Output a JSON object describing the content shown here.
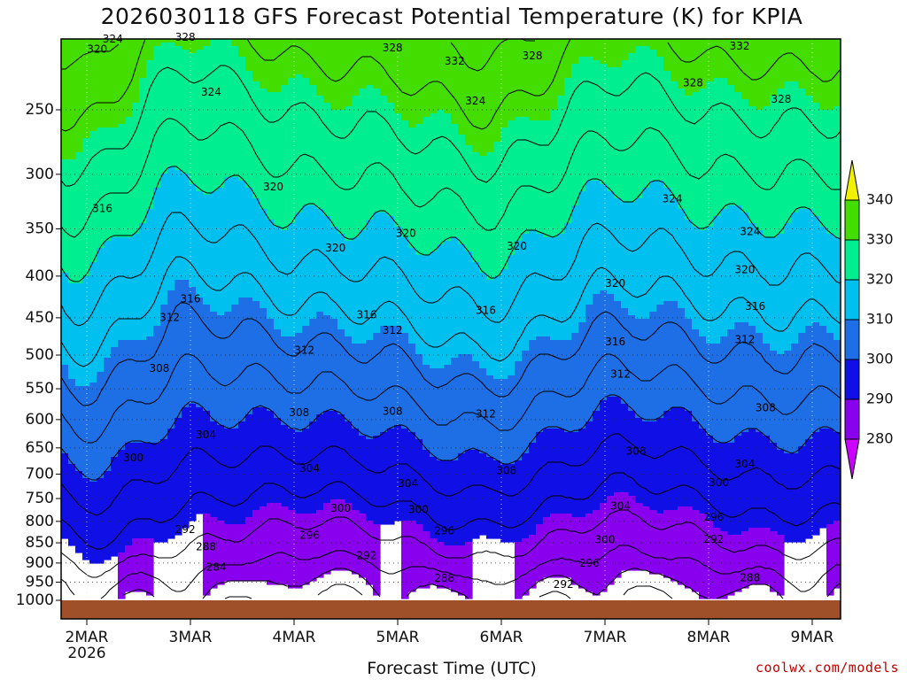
{
  "title": "2026030118 GFS Forecast Potential Temperature (K) for KPIA",
  "x_axis_title": "Forecast Time (UTC)",
  "credit": "coolwx.com/models",
  "chart_data": {
    "type": "heatmap",
    "title": "2026030118 GFS Forecast Potential Temperature (K) for KPIA",
    "xlabel": "Forecast Time (UTC)",
    "ylabel": "",
    "y_scale": "log, inverted (pressure, hPa)",
    "ylim": [
      1000,
      200
    ],
    "x_ticks": [
      {
        "label": "2MAR",
        "day": 0
      },
      {
        "label": "3MAR",
        "day": 1
      },
      {
        "label": "4MAR",
        "day": 2
      },
      {
        "label": "5MAR",
        "day": 3
      },
      {
        "label": "6MAR",
        "day": 4
      },
      {
        "label": "7MAR",
        "day": 5
      },
      {
        "label": "8MAR",
        "day": 6
      },
      {
        "label": "9MAR",
        "day": 7
      }
    ],
    "x_year_label": "2026",
    "y_ticks": [
      250,
      300,
      350,
      400,
      450,
      500,
      550,
      600,
      650,
      700,
      750,
      800,
      850,
      900,
      950,
      1000
    ],
    "colorbar": {
      "levels": [
        280,
        290,
        300,
        310,
        320,
        330,
        340
      ],
      "colors": [
        "#cc00ff",
        "#8800ee",
        "#1010e6",
        "#1e6fe6",
        "#00c0f0",
        "#00ee90",
        "#44dd00",
        "#f0f000"
      ]
    },
    "ground_color": "#a05028",
    "contour_labels": [
      {
        "value": "324",
        "day": 0.25,
        "p": 205
      },
      {
        "value": "320",
        "day": 0.1,
        "p": 211
      },
      {
        "value": "328",
        "day": 0.95,
        "p": 204
      },
      {
        "value": "324",
        "day": 1.2,
        "p": 238
      },
      {
        "value": "316",
        "day": 0.15,
        "p": 331
      },
      {
        "value": "320",
        "day": 1.8,
        "p": 311
      },
      {
        "value": "316",
        "day": 1.0,
        "p": 427
      },
      {
        "value": "312",
        "day": 0.8,
        "p": 450
      },
      {
        "value": "308",
        "day": 0.7,
        "p": 520
      },
      {
        "value": "304",
        "day": 1.15,
        "p": 627
      },
      {
        "value": "300",
        "day": 0.45,
        "p": 669
      },
      {
        "value": "292",
        "day": 0.95,
        "p": 820
      },
      {
        "value": "288",
        "day": 1.15,
        "p": 861
      },
      {
        "value": "284",
        "day": 1.25,
        "p": 912
      },
      {
        "value": "328",
        "day": 2.95,
        "p": 210
      },
      {
        "value": "332",
        "day": 3.55,
        "p": 218
      },
      {
        "value": "328",
        "day": 4.3,
        "p": 215
      },
      {
        "value": "324",
        "day": 3.75,
        "p": 244
      },
      {
        "value": "320",
        "day": 2.4,
        "p": 370
      },
      {
        "value": "320",
        "day": 3.08,
        "p": 355
      },
      {
        "value": "316",
        "day": 2.7,
        "p": 447
      },
      {
        "value": "312",
        "day": 2.95,
        "p": 467
      },
      {
        "value": "312",
        "day": 2.1,
        "p": 494
      },
      {
        "value": "308",
        "day": 2.05,
        "p": 589
      },
      {
        "value": "308",
        "day": 2.95,
        "p": 587
      },
      {
        "value": "304",
        "day": 2.15,
        "p": 690
      },
      {
        "value": "304",
        "day": 3.1,
        "p": 720
      },
      {
        "value": "300",
        "day": 2.45,
        "p": 772
      },
      {
        "value": "300",
        "day": 3.2,
        "p": 775
      },
      {
        "value": "296",
        "day": 2.15,
        "p": 833
      },
      {
        "value": "292",
        "day": 2.7,
        "p": 882
      },
      {
        "value": "296",
        "day": 3.45,
        "p": 823
      },
      {
        "value": "288",
        "day": 3.45,
        "p": 941
      },
      {
        "value": "320",
        "day": 4.15,
        "p": 368
      },
      {
        "value": "316",
        "day": 3.85,
        "p": 441
      },
      {
        "value": "312",
        "day": 3.85,
        "p": 591
      },
      {
        "value": "308",
        "day": 4.05,
        "p": 694
      },
      {
        "value": "292",
        "day": 4.6,
        "p": 957
      },
      {
        "value": "296",
        "day": 4.85,
        "p": 901
      },
      {
        "value": "300",
        "day": 5.0,
        "p": 844
      },
      {
        "value": "304",
        "day": 5.15,
        "p": 767
      },
      {
        "value": "308",
        "day": 5.3,
        "p": 657
      },
      {
        "value": "312",
        "day": 5.15,
        "p": 528
      },
      {
        "value": "316",
        "day": 5.1,
        "p": 482
      },
      {
        "value": "320",
        "day": 5.1,
        "p": 409
      },
      {
        "value": "324",
        "day": 5.65,
        "p": 322
      },
      {
        "value": "328",
        "day": 5.85,
        "p": 232
      },
      {
        "value": "332",
        "day": 6.3,
        "p": 209
      },
      {
        "value": "328",
        "day": 6.7,
        "p": 243
      },
      {
        "value": "324",
        "day": 6.4,
        "p": 353
      },
      {
        "value": "320",
        "day": 6.35,
        "p": 393
      },
      {
        "value": "316",
        "day": 6.45,
        "p": 436
      },
      {
        "value": "312",
        "day": 6.35,
        "p": 479
      },
      {
        "value": "308",
        "day": 6.55,
        "p": 581
      },
      {
        "value": "304",
        "day": 6.35,
        "p": 681
      },
      {
        "value": "300",
        "day": 6.1,
        "p": 718
      },
      {
        "value": "296",
        "day": 6.05,
        "p": 791
      },
      {
        "value": "292",
        "day": 6.05,
        "p": 843
      },
      {
        "value": "288",
        "day": 6.4,
        "p": 939
      }
    ]
  }
}
